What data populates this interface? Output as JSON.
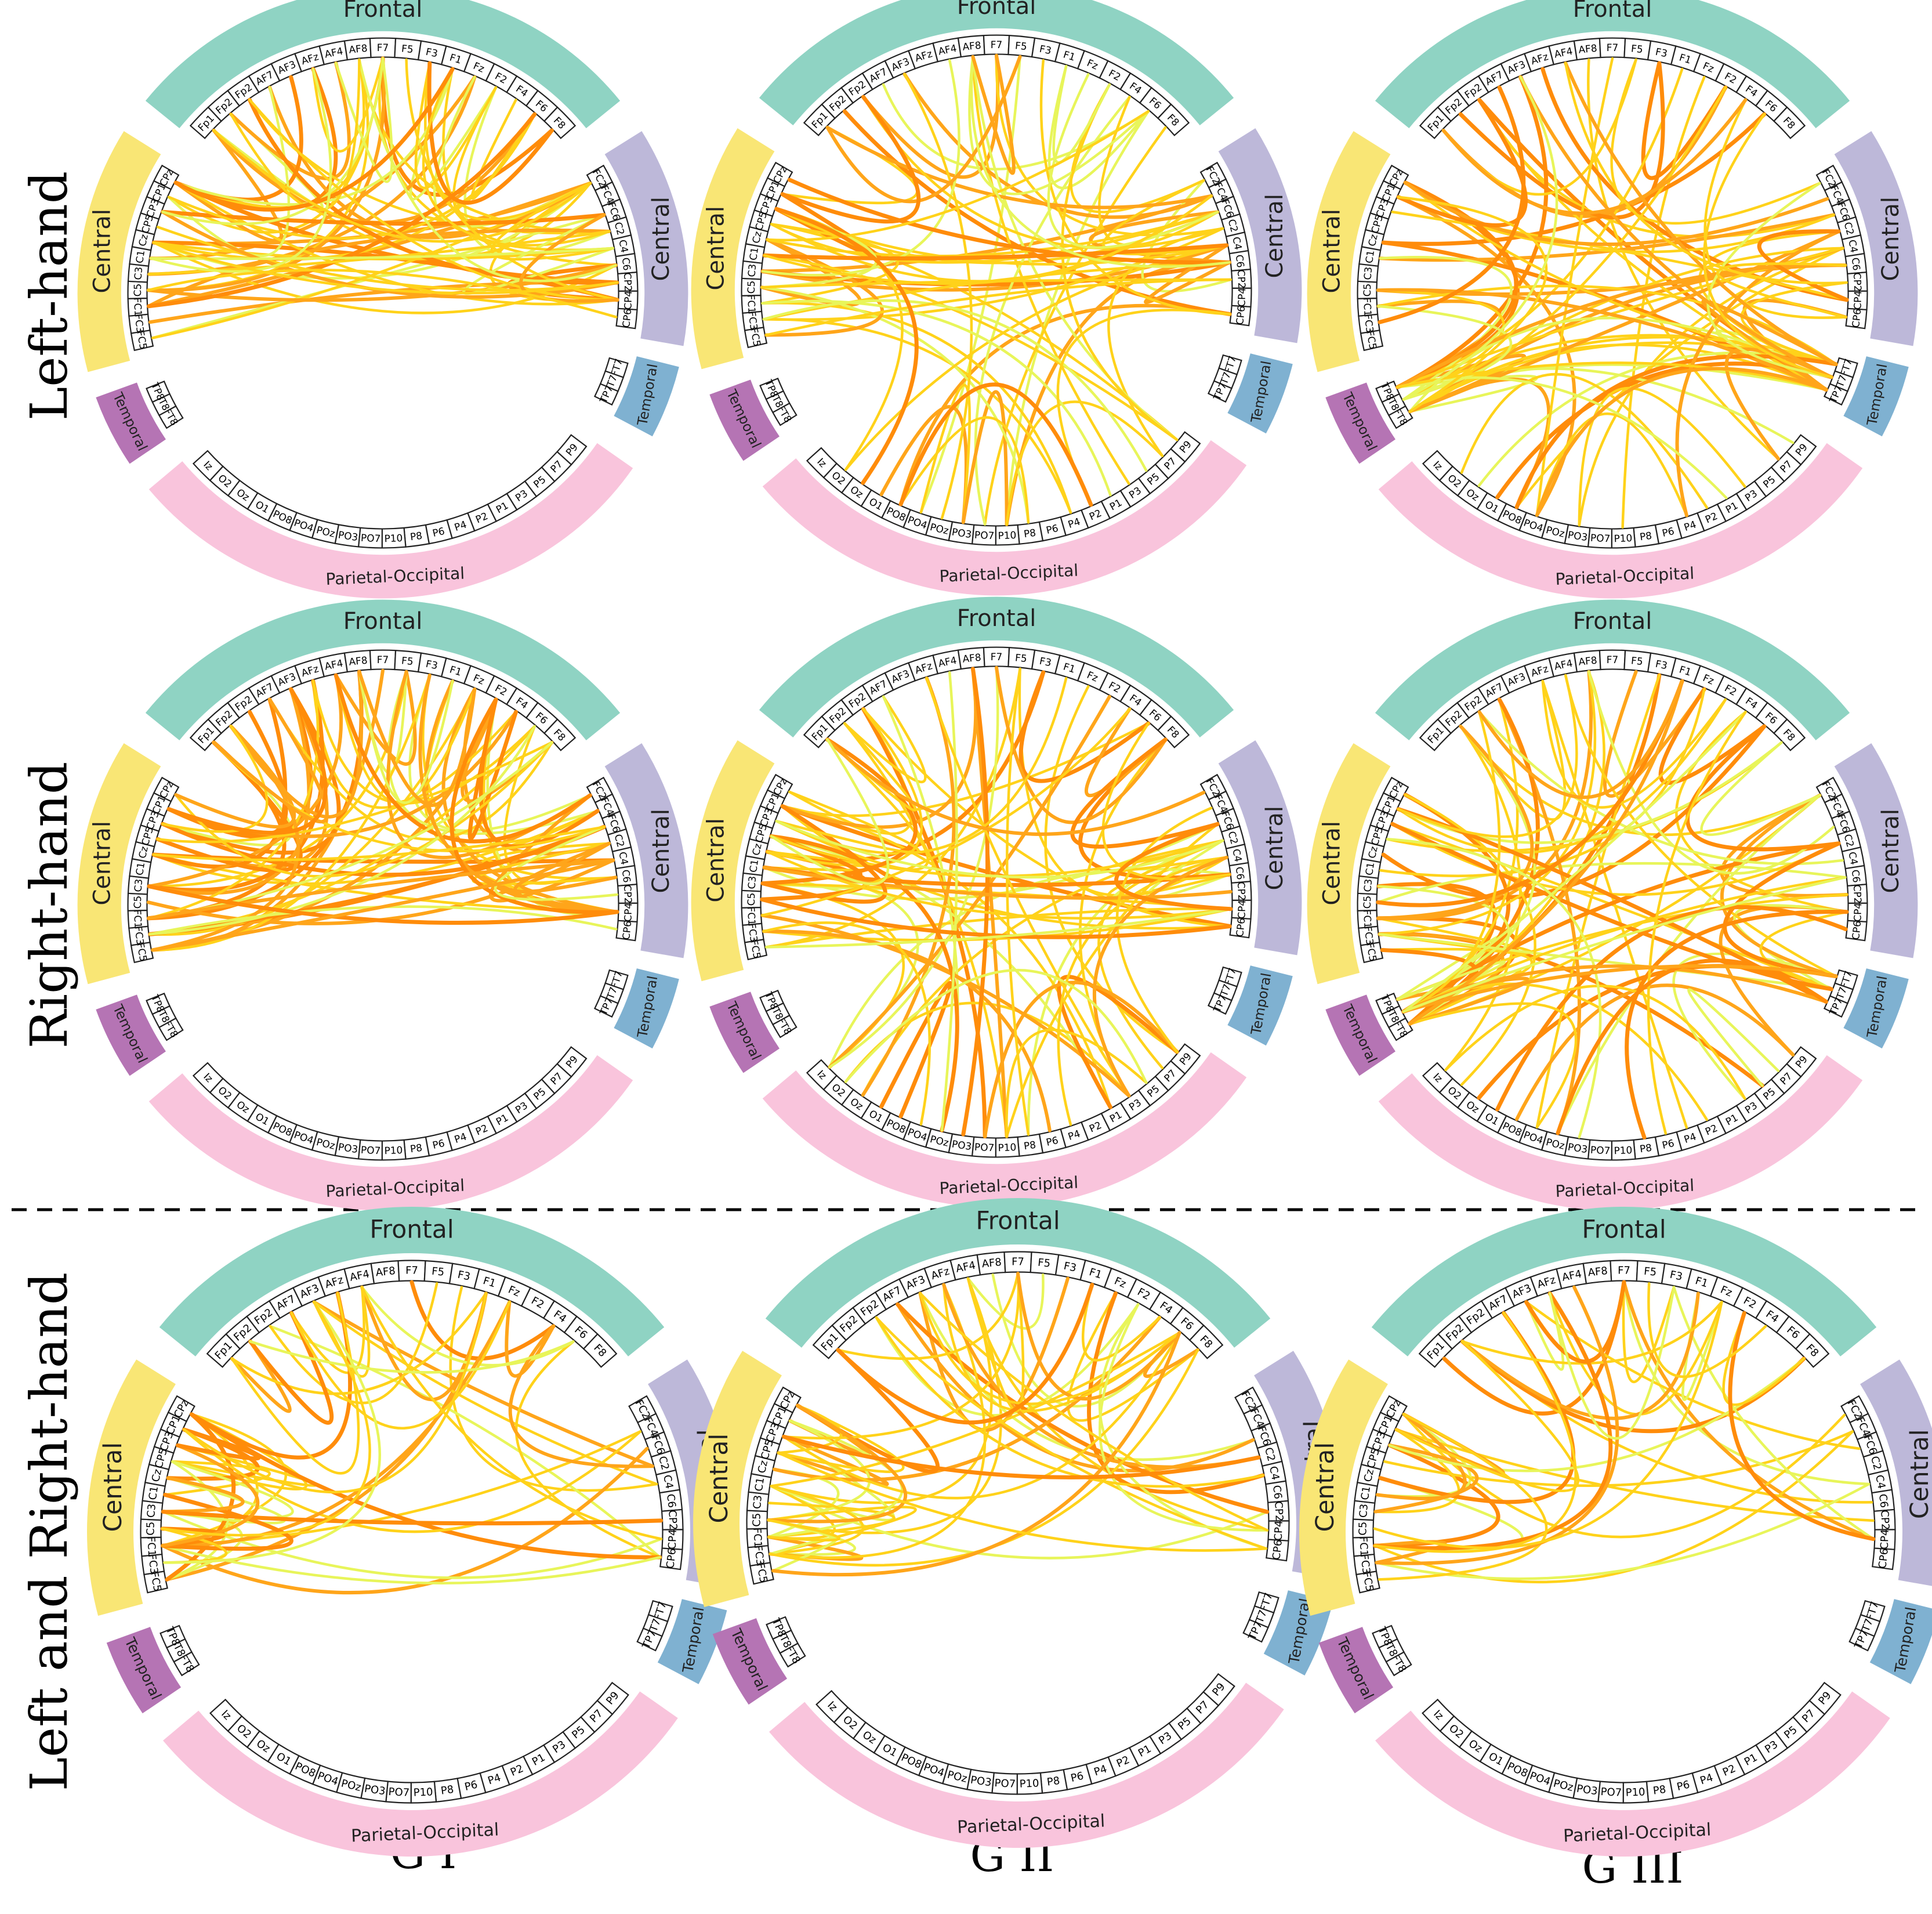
{
  "row_labels": [
    "Left-hand",
    "Right-hand",
    "Left and Right-hand"
  ],
  "col_labels": [
    "G I",
    "G II",
    "G III"
  ],
  "colors": {
    "frontal": "#8fd3c3",
    "central_left": "#f9e675",
    "central_right": "#bdb8d9",
    "temporal_left": "#b574b4",
    "temporal_right": "#7fb1d1",
    "parietal": "#f9c4dc",
    "chord_light": "#e8f55a",
    "chord_mid": "#ffd21a",
    "chord_strong": "#ffa51a",
    "chord_max": "#ff8c0a",
    "separator": "#000000"
  },
  "regions": {
    "frontal": "Frontal",
    "central_left": "Central",
    "central_right": "Central",
    "temporal_left": "Temporal",
    "temporal_right": "Temporal",
    "parietal": "Parietal-Occipital"
  },
  "channels": {
    "frontal": [
      "Fp1",
      "Fp2",
      "Fp2",
      "AF7",
      "AF3",
      "AFz",
      "AF4",
      "AF8",
      "F7",
      "F5",
      "F3",
      "F1",
      "Fz",
      "F2",
      "F4",
      "F6",
      "F8"
    ],
    "central_right": [
      "FC2",
      "FC4",
      "FC6",
      "C2",
      "C4",
      "C6",
      "CP2",
      "CP4",
      "CP6"
    ],
    "temporal_right": [
      "FT7",
      "T7",
      "TP7"
    ],
    "parietal": [
      "P9",
      "P7",
      "P5",
      "P3",
      "P1",
      "P2",
      "P4",
      "P6",
      "P8",
      "P10",
      "PO7",
      "PO3",
      "POz",
      "PO4",
      "PO8",
      "O1",
      "Oz",
      "O2",
      "Iz"
    ],
    "temporal_left": [
      "FT8",
      "T8",
      "TP8"
    ],
    "central_left": [
      "FC5",
      "FC3",
      "FC1",
      "C5",
      "C3",
      "C1",
      "Cz",
      "CP5",
      "CP3",
      "CP1",
      "CPz"
    ]
  }
}
